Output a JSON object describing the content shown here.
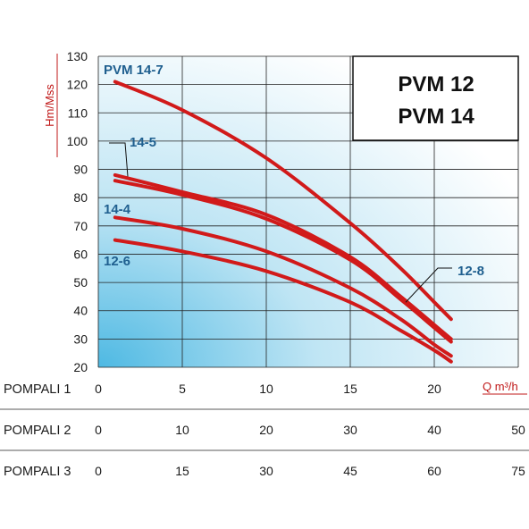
{
  "chart_data": {
    "type": "line",
    "title": [
      "PVM 12",
      "PVM 14"
    ],
    "ylabel": "Hm/Mss",
    "xunit": "Q m³/h",
    "ylim": [
      20,
      130
    ],
    "yticks": [
      20,
      30,
      40,
      50,
      60,
      70,
      80,
      90,
      100,
      110,
      120,
      130
    ],
    "xlim": [
      0,
      25
    ],
    "grid": true,
    "x_scales": [
      {
        "label": "POMPALI 1",
        "ticks": [
          "0",
          "5",
          "10",
          "15",
          "20"
        ],
        "values": [
          0,
          5,
          10,
          15,
          20
        ]
      },
      {
        "label": "POMPALI 2",
        "ticks": [
          "0",
          "10",
          "20",
          "30",
          "40",
          "50"
        ],
        "values": [
          0,
          5,
          10,
          15,
          20,
          25
        ]
      },
      {
        "label": "POMPALI 3",
        "ticks": [
          "0",
          "15",
          "30",
          "45",
          "60",
          "75"
        ],
        "values": [
          0,
          5,
          10,
          15,
          20,
          25
        ]
      }
    ],
    "series": [
      {
        "name": "PVM 14-7",
        "x": [
          1,
          5,
          10,
          15,
          18,
          20,
          21
        ],
        "y": [
          121,
          111,
          94,
          71,
          55,
          43,
          37
        ]
      },
      {
        "name": "14-5",
        "x": [
          1,
          5,
          10,
          15,
          18,
          20,
          21
        ],
        "y": [
          88,
          82,
          74,
          59,
          45,
          35,
          30
        ]
      },
      {
        "name": "12-8",
        "x": [
          1,
          5,
          10,
          15,
          18,
          20,
          21
        ],
        "y": [
          86,
          81,
          72.5,
          58,
          44,
          34,
          29
        ]
      },
      {
        "name": "14-4",
        "x": [
          1,
          5,
          10,
          15,
          18,
          20,
          21
        ],
        "y": [
          73,
          69,
          61,
          48,
          37,
          28,
          24
        ]
      },
      {
        "name": "12-6",
        "x": [
          1,
          5,
          10,
          15,
          18,
          20,
          21
        ],
        "y": [
          65,
          61,
          54,
          43,
          33,
          26,
          22
        ]
      }
    ],
    "labels": [
      {
        "text": "PVM 14-7",
        "series": "PVM 14-7"
      },
      {
        "text": "14-5",
        "series": "14-5"
      },
      {
        "text": "12-8",
        "series": "12-8"
      },
      {
        "text": "14-4",
        "series": "14-4"
      },
      {
        "text": "12-6",
        "series": "12-6"
      }
    ],
    "colors": {
      "curve": "#d11a1a",
      "label": "#1f5f8f",
      "axis_title": "#c01818",
      "gradient_start": "#4eb9e3",
      "gradient_end": "#ffffff"
    }
  }
}
